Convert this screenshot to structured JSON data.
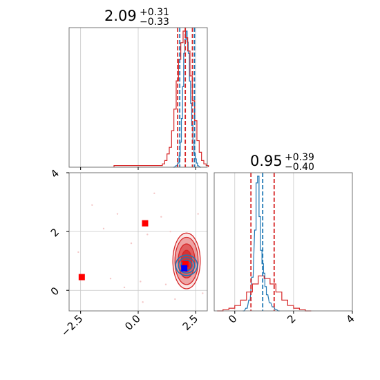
{
  "chart_data": [
    {
      "type": "histogram",
      "panel": "marginal-param-1",
      "title": {
        "value": "2.09",
        "plus": "+0.31",
        "minus": "−0.33"
      },
      "xlim": [
        -3.0,
        3.0
      ],
      "ylabel": "",
      "xlabel": "",
      "grid": true,
      "quantile_lines": [
        1.76,
        2.09,
        2.4
      ],
      "series": [
        {
          "color": "#1f77b4",
          "bin_centers": [
            1.55,
            1.65,
            1.75,
            1.8,
            1.85,
            1.9,
            1.95,
            2.0,
            2.05,
            2.1,
            2.15,
            2.2,
            2.25,
            2.3,
            2.35,
            2.4,
            2.45,
            2.5,
            2.55,
            2.6,
            2.7
          ],
          "counts": [
            0,
            1,
            3,
            8,
            18,
            35,
            58,
            82,
            92,
            98,
            90,
            82,
            62,
            46,
            30,
            18,
            10,
            6,
            3,
            1,
            0
          ]
        },
        {
          "color": "#d62728",
          "bin_centers": [
            -1.0,
            1.0,
            1.1,
            1.2,
            1.3,
            1.4,
            1.5,
            1.6,
            1.7,
            1.8,
            1.9,
            2.0,
            2.1,
            2.2,
            2.3,
            2.4,
            2.5,
            2.6,
            2.7,
            2.8,
            2.9,
            3.0
          ],
          "counts": [
            1,
            1,
            2,
            4,
            8,
            12,
            22,
            35,
            52,
            65,
            75,
            82,
            78,
            70,
            55,
            40,
            28,
            16,
            9,
            4,
            2,
            1
          ]
        }
      ]
    },
    {
      "type": "contour",
      "panel": "joint-param-1-param-2",
      "xlim": [
        -3.0,
        3.0
      ],
      "ylim": [
        -0.7,
        4.0
      ],
      "xticks": [
        "−2.5",
        "0.0",
        "2.5"
      ],
      "yticks": [
        "0",
        "2",
        "4"
      ],
      "grid": true,
      "series": [
        {
          "color": "#d62728",
          "center": [
            2.1,
            1.0
          ],
          "spread": [
            0.48,
            0.82
          ],
          "filled": true
        },
        {
          "color": "#1f77b4",
          "center": [
            2.1,
            0.85
          ],
          "spread": [
            0.45,
            0.35
          ],
          "filled": false
        }
      ],
      "markers": [
        {
          "color": "#ff0000",
          "x": -2.45,
          "y": 0.45
        },
        {
          "color": "#ff0000",
          "x": 0.3,
          "y": 2.28
        },
        {
          "color": "#ff0000",
          "x": 2.05,
          "y": 0.9
        },
        {
          "color": "#0000ff",
          "x": 2.0,
          "y": 0.75
        }
      ]
    },
    {
      "type": "histogram",
      "panel": "marginal-param-2",
      "title": {
        "value": "0.95",
        "plus": "+0.39",
        "minus": "−0.40"
      },
      "xlim": [
        -0.7,
        4.0
      ],
      "xticks": [
        "0",
        "2",
        "4"
      ],
      "grid": true,
      "quantile_lines": [
        0.55,
        0.95,
        1.34
      ],
      "series": [
        {
          "color": "#1f77b4",
          "bin_centers": [
            0.3,
            0.4,
            0.5,
            0.6,
            0.7,
            0.75,
            0.8,
            0.85,
            0.9,
            0.95,
            1.0,
            1.05,
            1.1,
            1.2,
            1.3,
            1.4,
            1.5
          ],
          "counts": [
            0,
            2,
            8,
            25,
            60,
            95,
            100,
            70,
            45,
            35,
            28,
            18,
            12,
            6,
            3,
            1,
            0
          ]
        },
        {
          "color": "#d62728",
          "bin_centers": [
            -0.5,
            -0.3,
            -0.1,
            0.1,
            0.3,
            0.5,
            0.7,
            0.9,
            1.1,
            1.3,
            1.5,
            1.7,
            1.9,
            2.1,
            2.3,
            2.5
          ],
          "counts": [
            0,
            1,
            2,
            4,
            8,
            14,
            20,
            26,
            24,
            20,
            14,
            8,
            4,
            2,
            1,
            0
          ]
        }
      ]
    }
  ],
  "titles": {
    "p1_value": "2.09",
    "p1_plus": "+0.31",
    "p1_minus": "−0.33",
    "p2_value": "0.95",
    "p2_plus": "+0.39",
    "p2_minus": "−0.40"
  },
  "colors": {
    "red": "#d62728",
    "blue": "#1f77b4",
    "marker_red": "#ff0000",
    "marker_blue": "#0000ff"
  }
}
